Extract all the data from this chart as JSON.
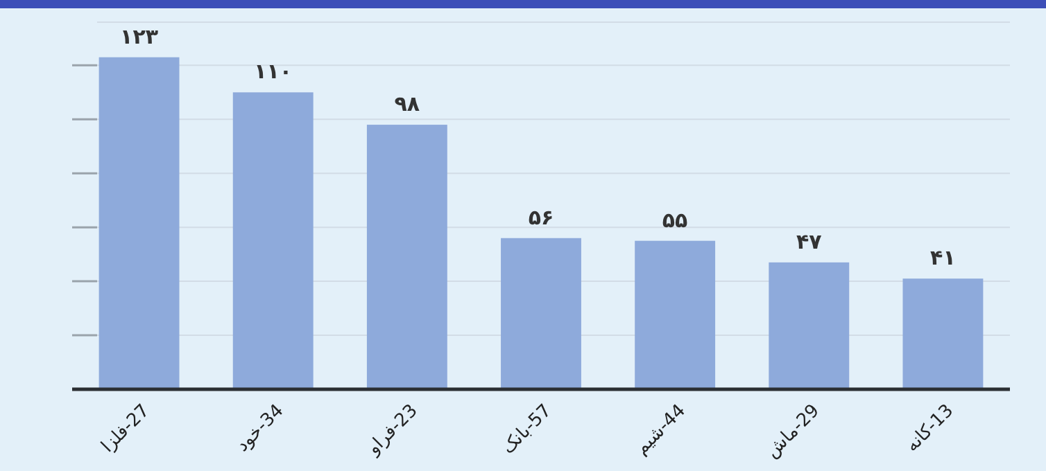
{
  "chart_data": {
    "type": "bar",
    "categories": [
      "27-فلزا",
      "34-خود",
      "23-فراو",
      "57-بانک",
      "44-شیم",
      "29-ماش",
      "13-کانه"
    ],
    "values": [
      123,
      110,
      98,
      56,
      55,
      47,
      41
    ],
    "value_labels": [
      "۱۲۳",
      "۱۱۰",
      "۹۸",
      "۵۶",
      "۵۵",
      "۴۷",
      "۴۱"
    ],
    "color": "#8eaadb",
    "ylim": [
      0,
      136
    ],
    "yticks": [
      {
        "value": 20,
        "label": null
      },
      {
        "value": 40,
        "label": null
      },
      {
        "value": 60,
        "label": null
      },
      {
        "value": 80,
        "label": null
      },
      {
        "value": 100,
        "label": null
      },
      {
        "value": 120,
        "label": null
      }
    ],
    "grid": "y",
    "tick_labels": "x"
  }
}
